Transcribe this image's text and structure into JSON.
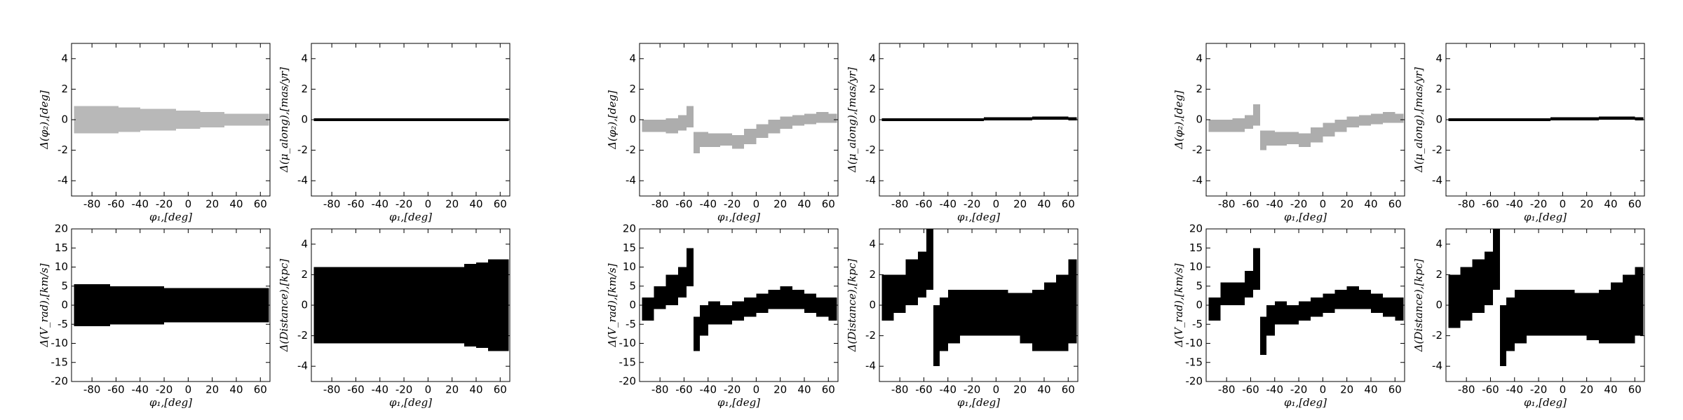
{
  "chart_data": [
    {
      "type": "band",
      "xlabel": "φ₁,[deg]",
      "ylabel": "Δ(φ₂),[deg]",
      "xlim": [
        -97,
        68
      ],
      "ylim": [
        -5,
        5
      ],
      "xticks": [
        -80,
        -60,
        -40,
        -20,
        0,
        20,
        40,
        60
      ],
      "yticks": [
        -4,
        -2,
        0,
        2,
        4
      ],
      "color": "#333333",
      "opacity": 0.35,
      "bins": [
        -95,
        -85,
        -75,
        -65,
        -58,
        -52,
        -47,
        -40,
        -30,
        -20,
        -10,
        0,
        10,
        20,
        30,
        40,
        50,
        60,
        67
      ],
      "lower": [
        -0.9,
        -0.9,
        -0.9,
        -0.9,
        -0.8,
        -0.8,
        -0.8,
        -0.7,
        -0.7,
        -0.7,
        -0.6,
        -0.6,
        -0.5,
        -0.5,
        -0.4,
        -0.4,
        -0.4,
        -0.4
      ],
      "upper": [
        0.9,
        0.9,
        0.9,
        0.9,
        0.8,
        0.8,
        0.8,
        0.7,
        0.7,
        0.7,
        0.6,
        0.6,
        0.5,
        0.5,
        0.4,
        0.4,
        0.4,
        0.4
      ]
    },
    {
      "type": "band",
      "xlabel": "φ₁,[deg]",
      "ylabel": "Δ(μ_along),[mas/yr]",
      "xlim": [
        -97,
        68
      ],
      "ylim": [
        -5,
        5
      ],
      "xticks": [
        -80,
        -60,
        -40,
        -20,
        0,
        20,
        40,
        60
      ],
      "yticks": [
        -4,
        -2,
        0,
        2,
        4
      ],
      "color": "#000000",
      "opacity": 1,
      "bins": [
        -95,
        -85,
        -75,
        -65,
        -58,
        -52,
        -47,
        -40,
        -30,
        -20,
        -10,
        0,
        10,
        20,
        30,
        40,
        50,
        60,
        67
      ],
      "lower": [
        -0.1,
        -0.1,
        -0.1,
        -0.1,
        -0.1,
        -0.1,
        -0.1,
        -0.1,
        -0.1,
        -0.1,
        -0.1,
        -0.1,
        -0.1,
        -0.1,
        -0.1,
        -0.1,
        -0.1,
        -0.1
      ],
      "upper": [
        0.1,
        0.1,
        0.1,
        0.1,
        0.1,
        0.1,
        0.1,
        0.1,
        0.1,
        0.1,
        0.1,
        0.1,
        0.1,
        0.1,
        0.1,
        0.1,
        0.1,
        0.1
      ]
    },
    {
      "type": "band",
      "xlabel": "φ₁,[deg]",
      "ylabel": "Δ(V_rad),[km/s]",
      "xlim": [
        -97,
        68
      ],
      "ylim": [
        -20,
        20
      ],
      "xticks": [
        -80,
        -60,
        -40,
        -20,
        0,
        20,
        40,
        60
      ],
      "yticks": [
        -20,
        -15,
        -10,
        -5,
        0,
        5,
        10,
        15,
        20
      ],
      "color": "#000000",
      "opacity": 1,
      "bins": [
        -95,
        -85,
        -75,
        -65,
        -58,
        -52,
        -47,
        -40,
        -30,
        -20,
        -10,
        0,
        10,
        20,
        30,
        40,
        50,
        60,
        67
      ],
      "lower": [
        -5.5,
        -5.5,
        -5.5,
        -5,
        -5,
        -5,
        -5,
        -5,
        -5,
        -4.5,
        -4.5,
        -4.5,
        -4.5,
        -4.5,
        -4.5,
        -4.5,
        -4.5,
        -4.5
      ],
      "upper": [
        5.5,
        5.5,
        5.5,
        5,
        5,
        5,
        5,
        5,
        5,
        4.5,
        4.5,
        4.5,
        4.5,
        4.5,
        4.5,
        4.5,
        4.5,
        4.5
      ]
    },
    {
      "type": "band",
      "xlabel": "φ₁,[deg]",
      "ylabel": "Δ(Distance),[kpc]",
      "xlim": [
        -97,
        68
      ],
      "ylim": [
        -5,
        5
      ],
      "xticks": [
        -80,
        -60,
        -40,
        -20,
        0,
        20,
        40,
        60
      ],
      "yticks": [
        -4,
        -2,
        0,
        2,
        4
      ],
      "color": "#000000",
      "opacity": 1,
      "bins": [
        -95,
        -85,
        -75,
        -65,
        -58,
        -52,
        -47,
        -40,
        -30,
        -20,
        -10,
        0,
        10,
        20,
        30,
        40,
        50,
        60,
        67
      ],
      "lower": [
        -2.5,
        -2.5,
        -2.5,
        -2.5,
        -2.5,
        -2.5,
        -2.5,
        -2.5,
        -2.5,
        -2.5,
        -2.5,
        -2.5,
        -2.5,
        -2.5,
        -2.7,
        -2.8,
        -3,
        -3
      ],
      "upper": [
        2.5,
        2.5,
        2.5,
        2.5,
        2.5,
        2.5,
        2.5,
        2.5,
        2.5,
        2.5,
        2.5,
        2.5,
        2.5,
        2.5,
        2.7,
        2.8,
        3,
        3
      ]
    },
    {
      "type": "band",
      "xlabel": "φ₁,[deg]",
      "ylabel": "Δ(φ₂),[deg]",
      "xlim": [
        -97,
        68
      ],
      "ylim": [
        -5,
        5
      ],
      "xticks": [
        -80,
        -60,
        -40,
        -20,
        0,
        20,
        40,
        60
      ],
      "yticks": [
        -4,
        -2,
        0,
        2,
        4
      ],
      "color": "#333333",
      "opacity": 0.4,
      "bins": [
        -95,
        -85,
        -75,
        -65,
        -58,
        -52,
        -47,
        -40,
        -30,
        -20,
        -10,
        0,
        10,
        20,
        30,
        40,
        50,
        60,
        67
      ],
      "lower": [
        -0.8,
        -0.8,
        -0.9,
        -0.7,
        -0.5,
        -2.2,
        -1.8,
        -1.8,
        -1.7,
        -1.9,
        -1.6,
        -1.2,
        -0.9,
        -0.6,
        -0.4,
        -0.3,
        -0.2,
        -0.2
      ],
      "upper": [
        0,
        0,
        0.1,
        0.3,
        0.9,
        -0.8,
        -0.8,
        -0.9,
        -0.9,
        -1,
        -0.6,
        -0.3,
        0,
        0.2,
        0.3,
        0.4,
        0.5,
        0.4
      ]
    },
    {
      "type": "band",
      "xlabel": "φ₁,[deg]",
      "ylabel": "Δ(μ_along),[mas/yr]",
      "xlim": [
        -97,
        68
      ],
      "ylim": [
        -5,
        5
      ],
      "xticks": [
        -80,
        -60,
        -40,
        -20,
        0,
        20,
        40,
        60
      ],
      "yticks": [
        -4,
        -2,
        0,
        2,
        4
      ],
      "color": "#000000",
      "opacity": 1,
      "bins": [
        -95,
        -85,
        -75,
        -65,
        -58,
        -52,
        -47,
        -40,
        -30,
        -20,
        -10,
        0,
        10,
        20,
        30,
        40,
        50,
        60,
        67
      ],
      "lower": [
        -0.1,
        -0.1,
        -0.1,
        -0.1,
        -0.1,
        -0.1,
        -0.1,
        -0.1,
        -0.1,
        -0.1,
        -0.05,
        -0.05,
        -0.05,
        -0.05,
        0,
        0,
        0,
        -0.05
      ],
      "upper": [
        0.1,
        0.1,
        0.1,
        0.1,
        0.1,
        0.1,
        0.1,
        0.1,
        0.1,
        0.1,
        0.15,
        0.15,
        0.15,
        0.15,
        0.2,
        0.2,
        0.2,
        0.15
      ]
    },
    {
      "type": "band",
      "xlabel": "φ₁,[deg]",
      "ylabel": "Δ(V_rad),[km/s]",
      "xlim": [
        -97,
        68
      ],
      "ylim": [
        -20,
        20
      ],
      "xticks": [
        -80,
        -60,
        -40,
        -20,
        0,
        20,
        40,
        60
      ],
      "yticks": [
        -20,
        -15,
        -10,
        -5,
        0,
        5,
        10,
        15,
        20
      ],
      "color": "#000000",
      "opacity": 1,
      "bins": [
        -95,
        -85,
        -75,
        -65,
        -58,
        -52,
        -47,
        -40,
        -30,
        -20,
        -10,
        0,
        10,
        20,
        30,
        40,
        50,
        60,
        67
      ],
      "lower": [
        -4,
        -1,
        0,
        2,
        5,
        -12,
        -8,
        -5,
        -5,
        -4,
        -3,
        -2,
        -1,
        -1,
        -1,
        -2,
        -3,
        -4
      ],
      "upper": [
        2,
        5,
        8,
        10,
        15,
        -3,
        0,
        1,
        0,
        1,
        2,
        3,
        4,
        5,
        4,
        3,
        2,
        2
      ]
    },
    {
      "type": "band",
      "xlabel": "φ₁,[deg]",
      "ylabel": "Δ(Distance),[kpc]",
      "xlim": [
        -97,
        68
      ],
      "ylim": [
        -5,
        5
      ],
      "xticks": [
        -80,
        -60,
        -40,
        -20,
        0,
        20,
        40,
        60
      ],
      "yticks": [
        -4,
        -2,
        0,
        2,
        4
      ],
      "color": "#000000",
      "opacity": 1,
      "bins": [
        -95,
        -85,
        -75,
        -65,
        -58,
        -52,
        -47,
        -40,
        -30,
        -20,
        -10,
        0,
        10,
        20,
        30,
        40,
        50,
        60,
        67
      ],
      "lower": [
        -1,
        -0.5,
        0,
        0.5,
        1,
        -4,
        -3,
        -2.5,
        -2,
        -2,
        -2,
        -2,
        -2,
        -2.5,
        -3,
        -3,
        -3,
        -2.5
      ],
      "upper": [
        2,
        2,
        3,
        3.5,
        5,
        0,
        0.5,
        1,
        1,
        1,
        1,
        1,
        0.8,
        0.8,
        1,
        1.5,
        2,
        3
      ]
    },
    {
      "type": "band",
      "xlabel": "φ₁,[deg]",
      "ylabel": "Δ(φ₂),[deg]",
      "xlim": [
        -97,
        68
      ],
      "ylim": [
        -5,
        5
      ],
      "xticks": [
        -80,
        -60,
        -40,
        -20,
        0,
        20,
        40,
        60
      ],
      "yticks": [
        -4,
        -2,
        0,
        2,
        4
      ],
      "color": "#333333",
      "opacity": 0.4,
      "bins": [
        -95,
        -85,
        -75,
        -65,
        -58,
        -52,
        -47,
        -40,
        -30,
        -20,
        -10,
        0,
        10,
        20,
        30,
        40,
        50,
        60,
        67
      ],
      "lower": [
        -0.8,
        -0.8,
        -0.8,
        -0.6,
        -0.4,
        -2,
        -1.7,
        -1.7,
        -1.6,
        -1.8,
        -1.5,
        -1.1,
        -0.8,
        -0.5,
        -0.4,
        -0.3,
        -0.2,
        -0.2
      ],
      "upper": [
        0,
        0,
        0.1,
        0.3,
        1,
        -0.7,
        -0.7,
        -0.8,
        -0.8,
        -0.9,
        -0.5,
        -0.2,
        0,
        0.2,
        0.3,
        0.4,
        0.5,
        0.4
      ]
    },
    {
      "type": "band",
      "xlabel": "φ₁,[deg]",
      "ylabel": "Δ(μ_along),[mas/yr]",
      "xlim": [
        -97,
        68
      ],
      "ylim": [
        -5,
        5
      ],
      "xticks": [
        -80,
        -60,
        -40,
        -20,
        0,
        20,
        40,
        60
      ],
      "yticks": [
        -4,
        -2,
        0,
        2,
        4
      ],
      "color": "#000000",
      "opacity": 1,
      "bins": [
        -95,
        -85,
        -75,
        -65,
        -58,
        -52,
        -47,
        -40,
        -30,
        -20,
        -10,
        0,
        10,
        20,
        30,
        40,
        50,
        60,
        67
      ],
      "lower": [
        -0.1,
        -0.1,
        -0.1,
        -0.1,
        -0.1,
        -0.1,
        -0.1,
        -0.1,
        -0.1,
        -0.1,
        -0.05,
        -0.05,
        -0.05,
        -0.05,
        0,
        0,
        0,
        -0.05
      ],
      "upper": [
        0.1,
        0.1,
        0.1,
        0.1,
        0.1,
        0.1,
        0.1,
        0.1,
        0.1,
        0.1,
        0.15,
        0.15,
        0.15,
        0.15,
        0.2,
        0.2,
        0.2,
        0.15
      ]
    },
    {
      "type": "band",
      "xlabel": "φ₁,[deg]",
      "ylabel": "Δ(V_rad),[km/s]",
      "xlim": [
        -97,
        68
      ],
      "ylim": [
        -20,
        20
      ],
      "xticks": [
        -80,
        -60,
        -40,
        -20,
        0,
        20,
        40,
        60
      ],
      "yticks": [
        -20,
        -15,
        -10,
        -5,
        0,
        5,
        10,
        15,
        20
      ],
      "color": "#000000",
      "opacity": 1,
      "bins": [
        -95,
        -85,
        -75,
        -65,
        -58,
        -52,
        -47,
        -40,
        -30,
        -20,
        -10,
        0,
        10,
        20,
        30,
        40,
        50,
        60,
        67
      ],
      "lower": [
        -4,
        0,
        0,
        2,
        4,
        -13,
        -8,
        -5,
        -5,
        -4,
        -3,
        -2,
        -1,
        -1,
        -1,
        -2,
        -3,
        -4
      ],
      "upper": [
        2,
        6,
        6,
        9,
        15,
        -3,
        0,
        1,
        0,
        1,
        2,
        3,
        4,
        5,
        4,
        3,
        2,
        2
      ]
    },
    {
      "type": "band",
      "xlabel": "φ₁,[deg]",
      "ylabel": "Δ(Distance),[kpc]",
      "xlim": [
        -97,
        68
      ],
      "ylim": [
        -5,
        5
      ],
      "xticks": [
        -80,
        -60,
        -40,
        -20,
        0,
        20,
        40,
        60
      ],
      "yticks": [
        -4,
        -2,
        0,
        2,
        4
      ],
      "color": "#000000",
      "opacity": 1,
      "bins": [
        -95,
        -85,
        -75,
        -65,
        -58,
        -52,
        -47,
        -40,
        -30,
        -20,
        -10,
        0,
        10,
        20,
        30,
        40,
        50,
        60,
        67
      ],
      "lower": [
        -1.5,
        -1,
        -0.5,
        0,
        1,
        -4,
        -3,
        -2.5,
        -2,
        -2,
        -2,
        -2,
        -2,
        -2.3,
        -2.5,
        -2.5,
        -2.5,
        -2
      ],
      "upper": [
        2,
        2.5,
        3,
        3.5,
        5,
        0,
        0.5,
        1,
        1,
        1,
        1,
        1,
        0.8,
        0.8,
        1,
        1.5,
        2,
        2.5
      ]
    }
  ]
}
